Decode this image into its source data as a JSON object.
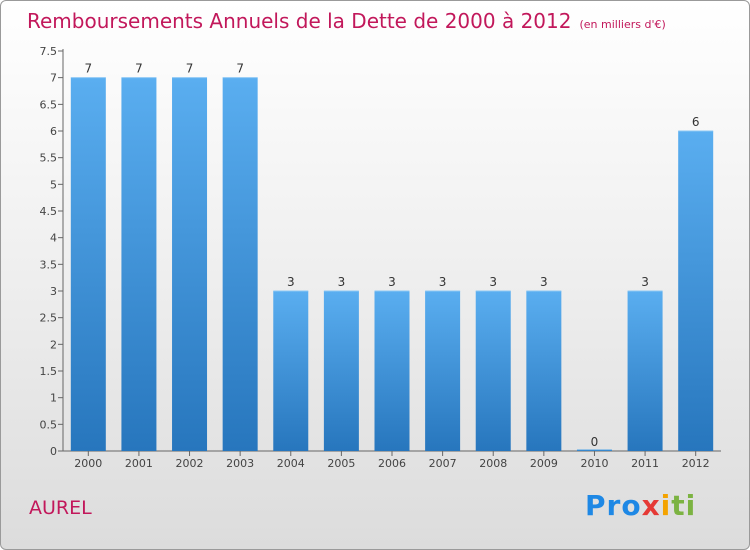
{
  "header": {
    "title": "Remboursements Annuels de la Dette de 2000 à 2012",
    "unit": "(en milliers d'€)"
  },
  "footer": {
    "commune": "AUREL",
    "logo": [
      "Pro",
      "x",
      "i",
      "ti"
    ]
  },
  "chart_data": {
    "type": "bar",
    "categories": [
      "2000",
      "2001",
      "2002",
      "2003",
      "2004",
      "2005",
      "2006",
      "2007",
      "2008",
      "2009",
      "2010",
      "2011",
      "2012"
    ],
    "values": [
      7,
      7,
      7,
      7,
      3,
      3,
      3,
      3,
      3,
      3,
      0,
      3,
      6
    ],
    "data_labels": [
      "7",
      "7",
      "7",
      "7",
      "3",
      "3",
      "3",
      "3",
      "3",
      "3",
      "0",
      "3",
      "6"
    ],
    "yticks": [
      "0",
      "0.5",
      "1",
      "1.5",
      "2",
      "2.5",
      "3",
      "3.5",
      "4",
      "4.5",
      "5",
      "5.5",
      "6",
      "6.5",
      "7",
      "7.5"
    ],
    "ylim": [
      0,
      7.5
    ],
    "grid": false,
    "bar_color": "#3d8fd6"
  }
}
